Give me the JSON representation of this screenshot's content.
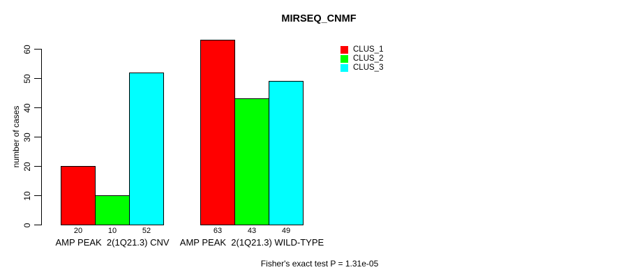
{
  "title": "MIRSEQ_CNMF",
  "y_axis": {
    "label": "number of cases",
    "ticks": [
      0,
      10,
      20,
      30,
      40,
      50,
      60
    ]
  },
  "legend": {
    "items": [
      {
        "label": "CLUS_1",
        "color": "#ff0000"
      },
      {
        "label": "CLUS_2",
        "color": "#00ff00"
      },
      {
        "label": "CLUS_3",
        "color": "#00ffff"
      }
    ]
  },
  "footer": {
    "text": "Fisher's exact test P = 1.31e-05"
  },
  "chart_data": {
    "type": "bar",
    "title": "MIRSEQ_CNMF",
    "categories": [
      "AMP PEAK  2(1Q21.3) CNV",
      "AMP PEAK  2(1Q21.3) WILD-TYPE"
    ],
    "series": [
      {
        "name": "CLUS_1",
        "color": "#ff0000",
        "values": [
          20,
          63
        ]
      },
      {
        "name": "CLUS_2",
        "color": "#00ff00",
        "values": [
          10,
          43
        ]
      },
      {
        "name": "CLUS_3",
        "color": "#00ffff",
        "values": [
          52,
          49
        ]
      }
    ],
    "xlabel": "",
    "ylabel": "number of cases",
    "ylim": [
      0,
      63
    ],
    "yticks": [
      0,
      10,
      20,
      30,
      40,
      50,
      60
    ],
    "grid": false,
    "bar_borders": "#000000",
    "legend_position": "top-right",
    "annotation": "Fisher's exact test P = 1.31e-05"
  }
}
